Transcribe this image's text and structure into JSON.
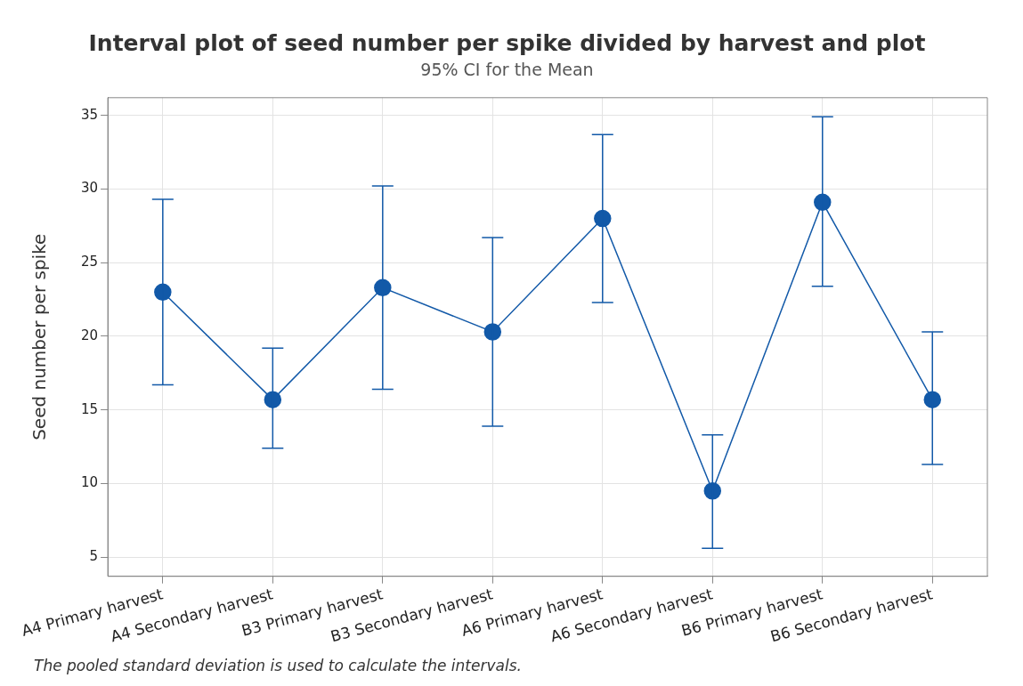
{
  "chart_data": {
    "type": "line",
    "title": "Interval plot of seed number per spike divided by harvest and plot",
    "subtitle": "95% CI for the Mean",
    "ylabel": "Seed number per spike",
    "categories": [
      "A4 Primary harvest",
      "A4 Secondary harvest",
      "B3 Primary harvest",
      "B3 Secondary harvest",
      "A6 Primary harvest",
      "A6 Secondary harvest",
      "B6 Primary harvest",
      "B6 Secondary harvest"
    ],
    "series": [
      {
        "color": "#1259a8",
        "values": [
          23.0,
          15.7,
          23.3,
          20.3,
          28.0,
          9.5,
          29.1,
          15.7
        ],
        "errors": [
          [
            16.7,
            29.3
          ],
          [
            12.4,
            19.2
          ],
          [
            16.4,
            30.2
          ],
          [
            13.9,
            26.7
          ],
          [
            22.3,
            33.7
          ],
          [
            5.6,
            13.3
          ],
          [
            23.4,
            34.9
          ],
          [
            11.3,
            20.3
          ]
        ]
      }
    ],
    "ylim": [
      3.7,
      36.2
    ],
    "yticks": [
      5,
      10,
      15,
      20,
      25,
      30,
      35
    ],
    "grid": true,
    "marker": "circle",
    "line_style": "solid",
    "legend": false,
    "annotations": [
      "The pooled standard deviation is used to calculate the intervals."
    ]
  }
}
